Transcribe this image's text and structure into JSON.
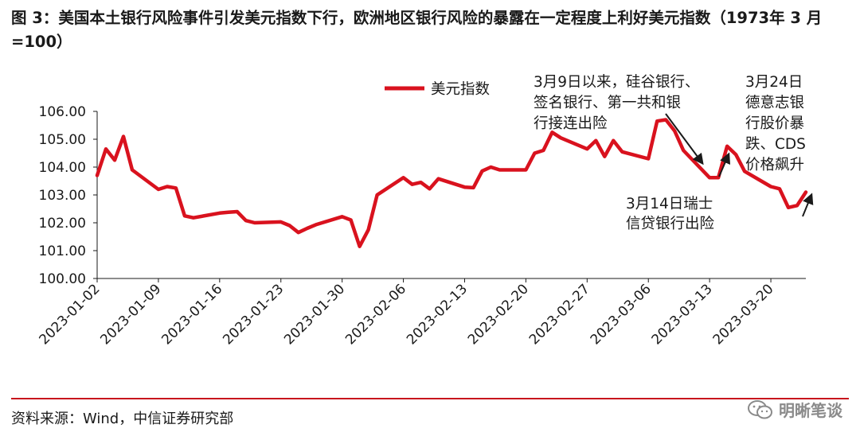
{
  "title": "图 3：美国本土银行风险事件引发美元指数下行，欧洲地区银行风险的暴露在一定程度上利好美元指数（1973年 3 月=100）",
  "source": "资料来源：Wind，中信证券研究部",
  "watermark": "明晰笔谈",
  "colors": {
    "line": "#d9121e",
    "accent_rule": "#c8161d",
    "axis": "#1a1a1a"
  },
  "chart_data": {
    "type": "line",
    "title": "",
    "xlabel": "",
    "ylabel": "",
    "ylim": [
      100,
      106
    ],
    "yticks": [
      "100.00",
      "101.00",
      "102.00",
      "103.00",
      "104.00",
      "105.00",
      "106.00"
    ],
    "xticks": [
      "2023-01-02",
      "2023-01-09",
      "2023-01-16",
      "2023-01-23",
      "2023-01-30",
      "2023-02-06",
      "2023-02-13",
      "2023-02-20",
      "2023-02-27",
      "2023-03-06",
      "2023-03-13",
      "2023-03-20"
    ],
    "legend": {
      "position": "top",
      "entries": [
        "美元指数"
      ]
    },
    "grid": false,
    "series": [
      {
        "name": "美元指数",
        "points": [
          [
            "2023-01-02",
            103.7
          ],
          [
            "2023-01-03",
            104.65
          ],
          [
            "2023-01-04",
            104.25
          ],
          [
            "2023-01-05",
            105.1
          ],
          [
            "2023-01-06",
            103.9
          ],
          [
            "2023-01-09",
            103.2
          ],
          [
            "2023-01-10",
            103.3
          ],
          [
            "2023-01-11",
            103.25
          ],
          [
            "2023-01-12",
            102.25
          ],
          [
            "2023-01-13",
            102.18
          ],
          [
            "2023-01-16",
            102.35
          ],
          [
            "2023-01-17",
            102.38
          ],
          [
            "2023-01-18",
            102.4
          ],
          [
            "2023-01-19",
            102.08
          ],
          [
            "2023-01-20",
            102.0
          ],
          [
            "2023-01-23",
            102.03
          ],
          [
            "2023-01-24",
            101.9
          ],
          [
            "2023-01-25",
            101.65
          ],
          [
            "2023-01-26",
            101.8
          ],
          [
            "2023-01-27",
            101.93
          ],
          [
            "2023-01-30",
            102.22
          ],
          [
            "2023-01-31",
            102.1
          ],
          [
            "2023-02-01",
            101.15
          ],
          [
            "2023-02-02",
            101.75
          ],
          [
            "2023-02-03",
            103.0
          ],
          [
            "2023-02-06",
            103.62
          ],
          [
            "2023-02-07",
            103.38
          ],
          [
            "2023-02-08",
            103.45
          ],
          [
            "2023-02-09",
            103.22
          ],
          [
            "2023-02-10",
            103.58
          ],
          [
            "2023-02-13",
            103.28
          ],
          [
            "2023-02-14",
            103.26
          ],
          [
            "2023-02-15",
            103.86
          ],
          [
            "2023-02-16",
            104.0
          ],
          [
            "2023-02-17",
            103.9
          ],
          [
            "2023-02-20",
            103.9
          ],
          [
            "2023-02-21",
            104.5
          ],
          [
            "2023-02-22",
            104.6
          ],
          [
            "2023-02-23",
            105.25
          ],
          [
            "2023-02-24",
            105.05
          ],
          [
            "2023-02-27",
            104.65
          ],
          [
            "2023-02-28",
            104.95
          ],
          [
            "2023-03-01",
            104.38
          ],
          [
            "2023-03-02",
            104.95
          ],
          [
            "2023-03-03",
            104.55
          ],
          [
            "2023-03-06",
            104.3
          ],
          [
            "2023-03-07",
            105.65
          ],
          [
            "2023-03-08",
            105.7
          ],
          [
            "2023-03-09",
            105.3
          ],
          [
            "2023-03-10",
            104.6
          ],
          [
            "2023-03-13",
            103.62
          ],
          [
            "2023-03-14",
            103.62
          ],
          [
            "2023-03-15",
            104.75
          ],
          [
            "2023-03-16",
            104.45
          ],
          [
            "2023-03-17",
            103.85
          ],
          [
            "2023-03-20",
            103.3
          ],
          [
            "2023-03-21",
            103.22
          ],
          [
            "2023-03-22",
            102.55
          ],
          [
            "2023-03-23",
            102.62
          ],
          [
            "2023-03-24",
            103.1
          ]
        ]
      }
    ],
    "annotations": [
      {
        "lines": [
          "3月9日以来，硅谷银行、",
          "签名银行、第一共和银",
          "行接连出险"
        ]
      },
      {
        "lines": [
          "3月14日瑞士",
          "信贷银行出险"
        ]
      },
      {
        "lines": [
          "3月24日",
          "德意志银",
          "行股价暴",
          "跌、CDS",
          "价格飙升"
        ]
      }
    ]
  }
}
